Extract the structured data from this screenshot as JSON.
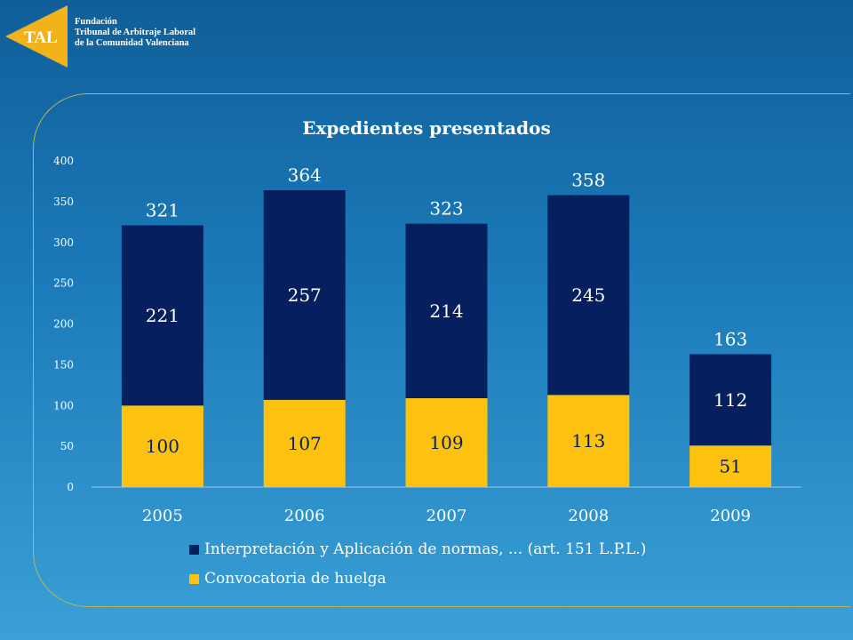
{
  "header": {
    "logo_text": "TAL",
    "org_lines": [
      "Fundación",
      "Tribunal de Arbitraje Laboral",
      "de la Comunidad Valenciana"
    ]
  },
  "colors": {
    "navy": "#06205f",
    "gold": "#fdc10f",
    "logo_gold": "#f2b31a",
    "text": "#ffffff"
  },
  "chart_data": {
    "type": "bar",
    "stacked": true,
    "title": "Expedientes presentados",
    "categories": [
      "2005",
      "2006",
      "2007",
      "2008",
      "2009"
    ],
    "series": [
      {
        "name": "Convocatoria de huelga",
        "values": [
          100,
          107,
          109,
          113,
          51
        ],
        "color": "#fdc10f"
      },
      {
        "name": "Interpretación y Aplicación de normas, ... (art. 151 L.P.L.)",
        "values": [
          221,
          257,
          214,
          245,
          112
        ],
        "color": "#06205f"
      }
    ],
    "totals": [
      321,
      364,
      323,
      358,
      163
    ],
    "ylim": [
      0,
      400
    ],
    "yticks": [
      0,
      50,
      100,
      150,
      200,
      250,
      300,
      350,
      400
    ],
    "legend_position": "bottom",
    "legend_order": [
      {
        "name": "Interpretación y Aplicación de normas, ... (art. 151 L.P.L.)",
        "color": "#06205f"
      },
      {
        "name": "Convocatoria de huelga",
        "color": "#fdc10f"
      }
    ]
  }
}
